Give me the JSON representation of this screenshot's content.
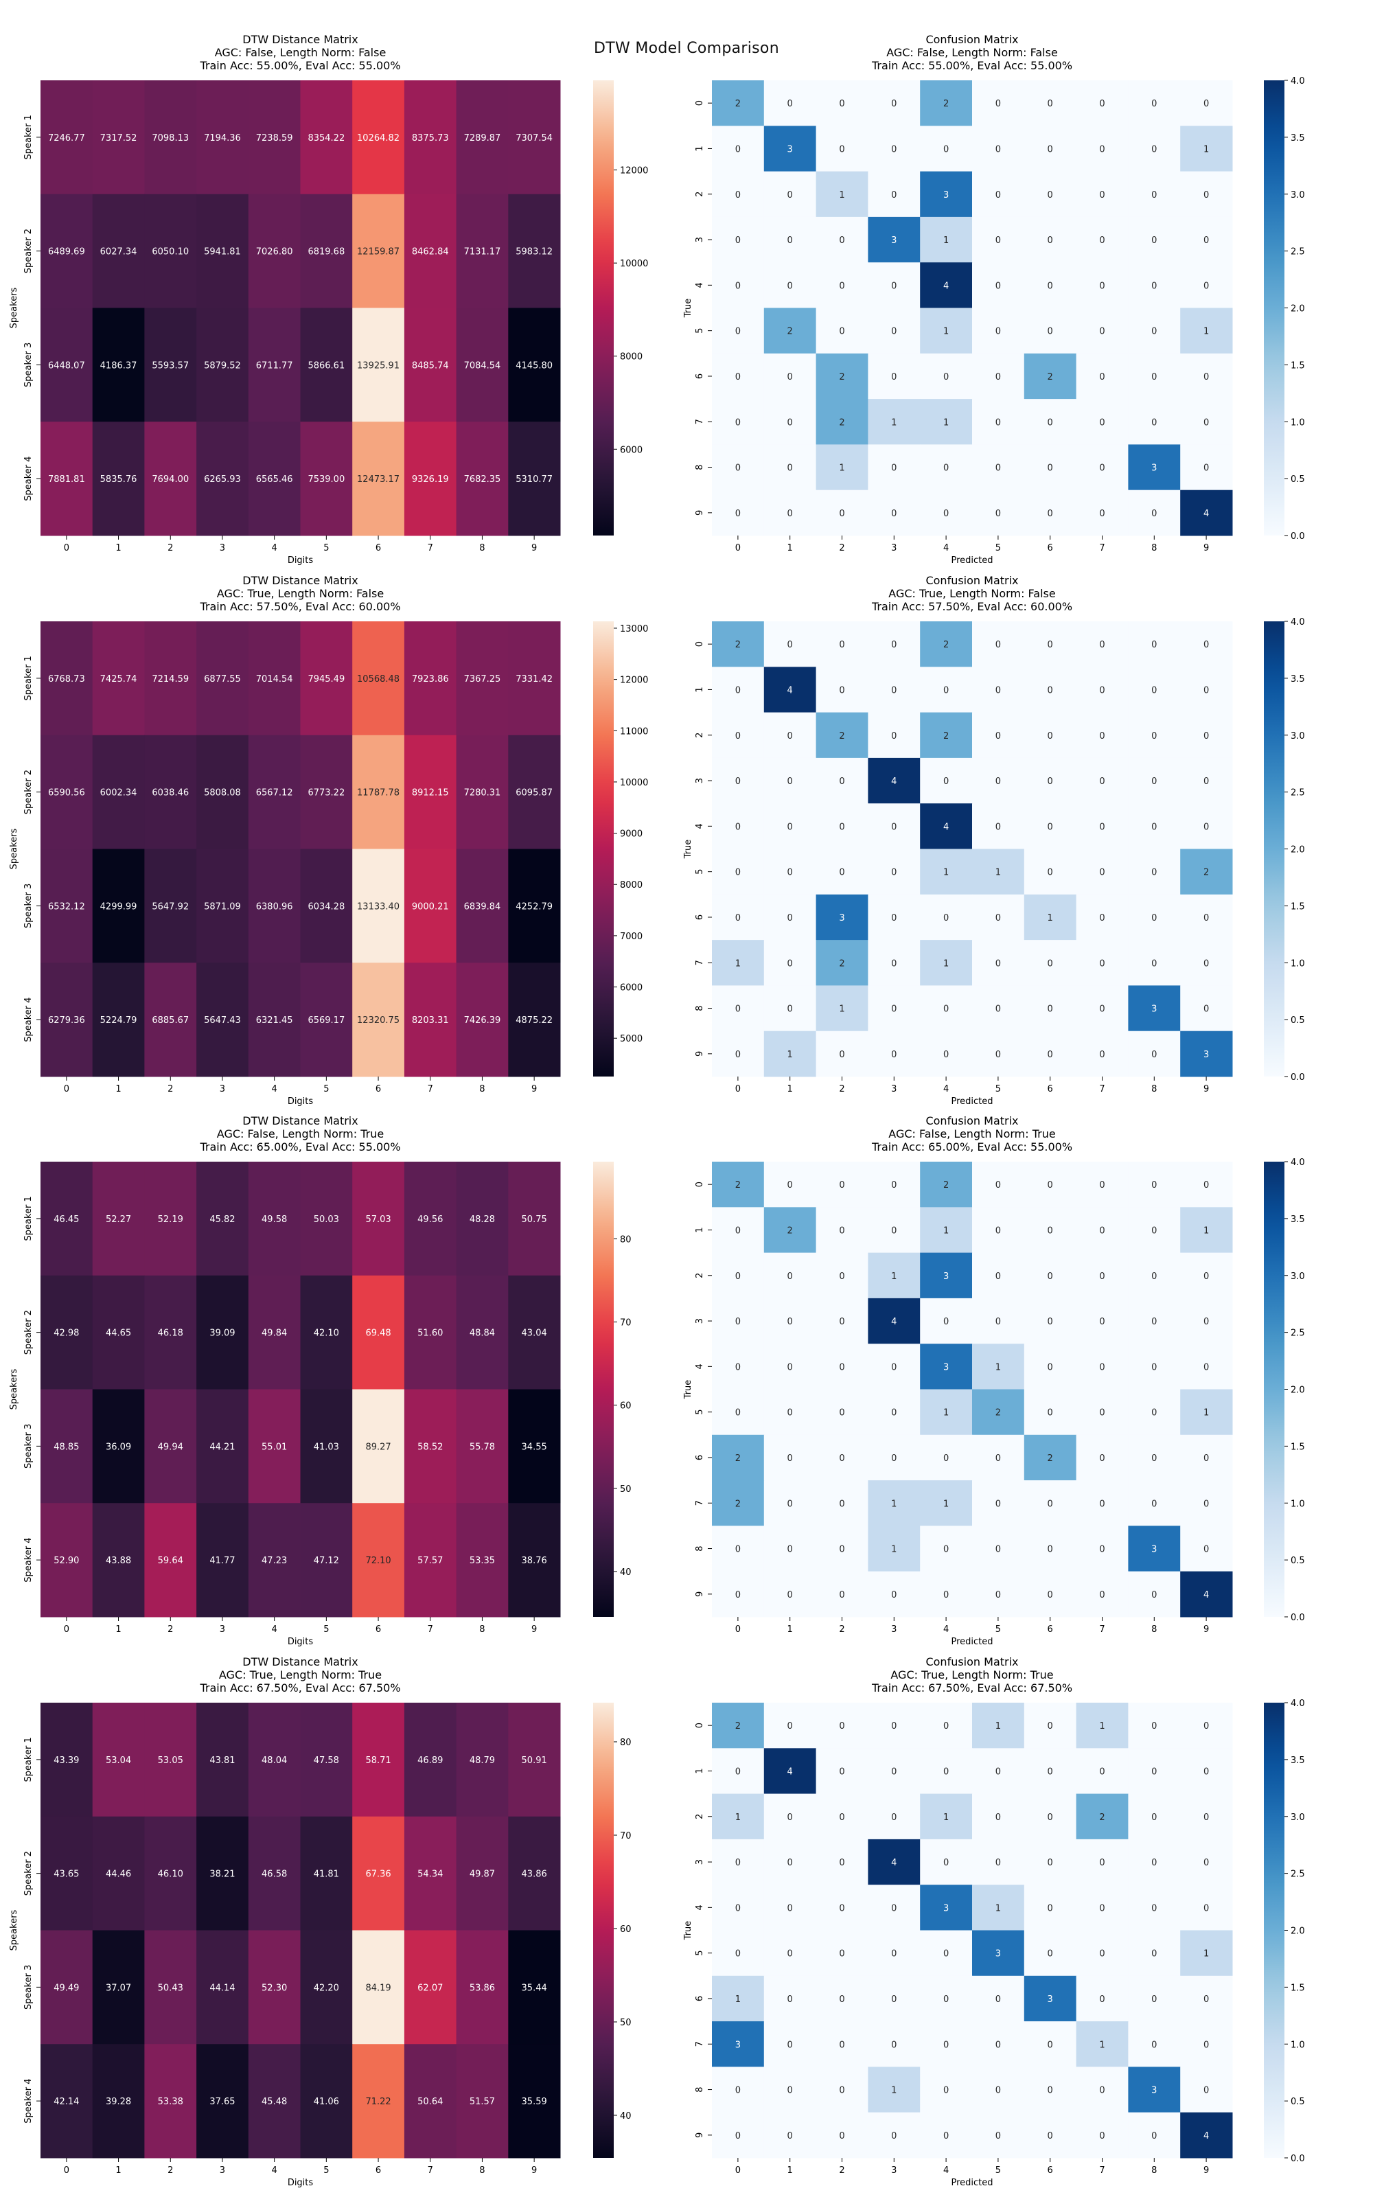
{
  "suptitle": "DTW Model Comparison",
  "chart_data": [
    {
      "type": "heatmap",
      "title": "DTW Distance Matrix\nAGC: False, Length Norm: False\nTrain Acc: 55.00%, Eval Acc: 55.00%",
      "xlabel": "Digits",
      "ylabel": "Speakers",
      "x": [
        "0",
        "1",
        "2",
        "3",
        "4",
        "5",
        "6",
        "7",
        "8",
        "9"
      ],
      "y": [
        "Speaker 1",
        "Speaker 2",
        "Speaker 3",
        "Speaker 4"
      ],
      "colormap": "rocket",
      "vmin": 4145.8,
      "vmax": 13925.91,
      "colorbar_ticks": [
        6000,
        8000,
        10000,
        12000
      ],
      "values": [
        [
          7246.77,
          7317.52,
          7098.13,
          7194.36,
          7238.59,
          8354.22,
          10264.82,
          8375.73,
          7289.87,
          7307.54
        ],
        [
          6489.69,
          6027.34,
          6050.1,
          5941.81,
          7026.8,
          6819.68,
          12159.87,
          8462.84,
          7131.17,
          5983.12
        ],
        [
          6448.07,
          4186.37,
          5593.57,
          5879.52,
          6711.77,
          5866.61,
          13925.91,
          8485.74,
          7084.54,
          4145.8
        ],
        [
          7881.81,
          5835.76,
          7694.0,
          6265.93,
          6565.46,
          7539.0,
          12473.17,
          9326.19,
          7682.35,
          5310.77
        ]
      ]
    },
    {
      "type": "heatmap",
      "title": "Confusion Matrix\nAGC: False, Length Norm: False\nTrain Acc: 55.00%, Eval Acc: 55.00%",
      "xlabel": "Predicted",
      "ylabel": "True",
      "x": [
        "0",
        "1",
        "2",
        "3",
        "4",
        "5",
        "6",
        "7",
        "8",
        "9"
      ],
      "y": [
        "0",
        "1",
        "2",
        "3",
        "4",
        "5",
        "6",
        "7",
        "8",
        "9"
      ],
      "colormap": "Blues",
      "vmin": 0,
      "vmax": 4,
      "colorbar_ticks": [
        0.0,
        0.5,
        1.0,
        1.5,
        2.0,
        2.5,
        3.0,
        3.5,
        4.0
      ],
      "values": [
        [
          2,
          0,
          0,
          0,
          2,
          0,
          0,
          0,
          0,
          0
        ],
        [
          0,
          3,
          0,
          0,
          0,
          0,
          0,
          0,
          0,
          1
        ],
        [
          0,
          0,
          1,
          0,
          3,
          0,
          0,
          0,
          0,
          0
        ],
        [
          0,
          0,
          0,
          3,
          1,
          0,
          0,
          0,
          0,
          0
        ],
        [
          0,
          0,
          0,
          0,
          4,
          0,
          0,
          0,
          0,
          0
        ],
        [
          0,
          2,
          0,
          0,
          1,
          0,
          0,
          0,
          0,
          1
        ],
        [
          0,
          0,
          2,
          0,
          0,
          0,
          2,
          0,
          0,
          0
        ],
        [
          0,
          0,
          2,
          1,
          1,
          0,
          0,
          0,
          0,
          0
        ],
        [
          0,
          0,
          1,
          0,
          0,
          0,
          0,
          0,
          3,
          0
        ],
        [
          0,
          0,
          0,
          0,
          0,
          0,
          0,
          0,
          0,
          4
        ]
      ]
    },
    {
      "type": "heatmap",
      "title": "DTW Distance Matrix\nAGC: True, Length Norm: False\nTrain Acc: 57.50%, Eval Acc: 60.00%",
      "xlabel": "Digits",
      "ylabel": "Speakers",
      "x": [
        "0",
        "1",
        "2",
        "3",
        "4",
        "5",
        "6",
        "7",
        "8",
        "9"
      ],
      "y": [
        "Speaker 1",
        "Speaker 2",
        "Speaker 3",
        "Speaker 4"
      ],
      "colormap": "rocket",
      "vmin": 4252.79,
      "vmax": 13133.4,
      "colorbar_ticks": [
        5000,
        6000,
        7000,
        8000,
        9000,
        10000,
        11000,
        12000,
        13000
      ],
      "values": [
        [
          6768.73,
          7425.74,
          7214.59,
          6877.55,
          7014.54,
          7945.49,
          10568.48,
          7923.86,
          7367.25,
          7331.42
        ],
        [
          6590.56,
          6002.34,
          6038.46,
          5808.08,
          6567.12,
          6773.22,
          11787.78,
          8912.15,
          7280.31,
          6095.87
        ],
        [
          6532.12,
          4299.99,
          5647.92,
          5871.09,
          6380.96,
          6034.28,
          13133.4,
          9000.21,
          6839.84,
          4252.79
        ],
        [
          6279.36,
          5224.79,
          6885.67,
          5647.43,
          6321.45,
          6569.17,
          12320.75,
          8203.31,
          7426.39,
          4875.22
        ]
      ]
    },
    {
      "type": "heatmap",
      "title": "Confusion Matrix\nAGC: True, Length Norm: False\nTrain Acc: 57.50%, Eval Acc: 60.00%",
      "xlabel": "Predicted",
      "ylabel": "True",
      "x": [
        "0",
        "1",
        "2",
        "3",
        "4",
        "5",
        "6",
        "7",
        "8",
        "9"
      ],
      "y": [
        "0",
        "1",
        "2",
        "3",
        "4",
        "5",
        "6",
        "7",
        "8",
        "9"
      ],
      "colormap": "Blues",
      "vmin": 0,
      "vmax": 4,
      "colorbar_ticks": [
        0.0,
        0.5,
        1.0,
        1.5,
        2.0,
        2.5,
        3.0,
        3.5,
        4.0
      ],
      "values": [
        [
          2,
          0,
          0,
          0,
          2,
          0,
          0,
          0,
          0,
          0
        ],
        [
          0,
          4,
          0,
          0,
          0,
          0,
          0,
          0,
          0,
          0
        ],
        [
          0,
          0,
          2,
          0,
          2,
          0,
          0,
          0,
          0,
          0
        ],
        [
          0,
          0,
          0,
          4,
          0,
          0,
          0,
          0,
          0,
          0
        ],
        [
          0,
          0,
          0,
          0,
          4,
          0,
          0,
          0,
          0,
          0
        ],
        [
          0,
          0,
          0,
          0,
          1,
          1,
          0,
          0,
          0,
          2
        ],
        [
          0,
          0,
          3,
          0,
          0,
          0,
          1,
          0,
          0,
          0
        ],
        [
          1,
          0,
          2,
          0,
          1,
          0,
          0,
          0,
          0,
          0
        ],
        [
          0,
          0,
          1,
          0,
          0,
          0,
          0,
          0,
          3,
          0
        ],
        [
          0,
          1,
          0,
          0,
          0,
          0,
          0,
          0,
          0,
          3
        ]
      ]
    },
    {
      "type": "heatmap",
      "title": "DTW Distance Matrix\nAGC: False, Length Norm: True\nTrain Acc: 65.00%, Eval Acc: 55.00%",
      "xlabel": "Digits",
      "ylabel": "Speakers",
      "x": [
        "0",
        "1",
        "2",
        "3",
        "4",
        "5",
        "6",
        "7",
        "8",
        "9"
      ],
      "y": [
        "Speaker 1",
        "Speaker 2",
        "Speaker 3",
        "Speaker 4"
      ],
      "colormap": "rocket",
      "vmin": 34.55,
      "vmax": 89.27,
      "colorbar_ticks": [
        40,
        50,
        60,
        70,
        80
      ],
      "values": [
        [
          46.45,
          52.27,
          52.19,
          45.82,
          49.58,
          50.03,
          57.03,
          49.56,
          48.28,
          50.75
        ],
        [
          42.98,
          44.65,
          46.18,
          39.09,
          49.84,
          42.1,
          69.48,
          51.6,
          48.84,
          43.04
        ],
        [
          48.85,
          36.09,
          49.94,
          44.21,
          55.01,
          41.03,
          89.27,
          58.52,
          55.78,
          34.55
        ],
        [
          52.9,
          43.88,
          59.64,
          41.77,
          47.23,
          47.12,
          72.1,
          57.57,
          53.35,
          38.76
        ]
      ]
    },
    {
      "type": "heatmap",
      "title": "Confusion Matrix\nAGC: False, Length Norm: True\nTrain Acc: 65.00%, Eval Acc: 55.00%",
      "xlabel": "Predicted",
      "ylabel": "True",
      "x": [
        "0",
        "1",
        "2",
        "3",
        "4",
        "5",
        "6",
        "7",
        "8",
        "9"
      ],
      "y": [
        "0",
        "1",
        "2",
        "3",
        "4",
        "5",
        "6",
        "7",
        "8",
        "9"
      ],
      "colormap": "Blues",
      "vmin": 0,
      "vmax": 4,
      "colorbar_ticks": [
        0.0,
        0.5,
        1.0,
        1.5,
        2.0,
        2.5,
        3.0,
        3.5,
        4.0
      ],
      "values": [
        [
          2,
          0,
          0,
          0,
          2,
          0,
          0,
          0,
          0,
          0
        ],
        [
          0,
          2,
          0,
          0,
          1,
          0,
          0,
          0,
          0,
          1
        ],
        [
          0,
          0,
          0,
          1,
          3,
          0,
          0,
          0,
          0,
          0
        ],
        [
          0,
          0,
          0,
          4,
          0,
          0,
          0,
          0,
          0,
          0
        ],
        [
          0,
          0,
          0,
          0,
          3,
          1,
          0,
          0,
          0,
          0
        ],
        [
          0,
          0,
          0,
          0,
          1,
          2,
          0,
          0,
          0,
          1
        ],
        [
          2,
          0,
          0,
          0,
          0,
          0,
          2,
          0,
          0,
          0
        ],
        [
          2,
          0,
          0,
          1,
          1,
          0,
          0,
          0,
          0,
          0
        ],
        [
          0,
          0,
          0,
          1,
          0,
          0,
          0,
          0,
          3,
          0
        ],
        [
          0,
          0,
          0,
          0,
          0,
          0,
          0,
          0,
          0,
          4
        ]
      ]
    },
    {
      "type": "heatmap",
      "title": "DTW Distance Matrix\nAGC: True, Length Norm: True\nTrain Acc: 67.50%, Eval Acc: 67.50%",
      "xlabel": "Digits",
      "ylabel": "Speakers",
      "x": [
        "0",
        "1",
        "2",
        "3",
        "4",
        "5",
        "6",
        "7",
        "8",
        "9"
      ],
      "y": [
        "Speaker 1",
        "Speaker 2",
        "Speaker 3",
        "Speaker 4"
      ],
      "colormap": "rocket",
      "vmin": 35.44,
      "vmax": 84.19,
      "colorbar_ticks": [
        40,
        50,
        60,
        70,
        80
      ],
      "values": [
        [
          43.39,
          53.04,
          53.05,
          43.81,
          48.04,
          47.58,
          58.71,
          46.89,
          48.79,
          50.91
        ],
        [
          43.65,
          44.46,
          46.1,
          38.21,
          46.58,
          41.81,
          67.36,
          54.34,
          49.87,
          43.86
        ],
        [
          49.49,
          37.07,
          50.43,
          44.14,
          52.3,
          42.2,
          84.19,
          62.07,
          53.86,
          35.44
        ],
        [
          42.14,
          39.28,
          53.38,
          37.65,
          45.48,
          41.06,
          71.22,
          50.64,
          51.57,
          35.59
        ]
      ]
    },
    {
      "type": "heatmap",
      "title": "Confusion Matrix\nAGC: True, Length Norm: True\nTrain Acc: 67.50%, Eval Acc: 67.50%",
      "xlabel": "Predicted",
      "ylabel": "True",
      "x": [
        "0",
        "1",
        "2",
        "3",
        "4",
        "5",
        "6",
        "7",
        "8",
        "9"
      ],
      "y": [
        "0",
        "1",
        "2",
        "3",
        "4",
        "5",
        "6",
        "7",
        "8",
        "9"
      ],
      "colormap": "Blues",
      "vmin": 0,
      "vmax": 4,
      "colorbar_ticks": [
        0.0,
        0.5,
        1.0,
        1.5,
        2.0,
        2.5,
        3.0,
        3.5,
        4.0
      ],
      "values": [
        [
          2,
          0,
          0,
          0,
          0,
          1,
          0,
          1,
          0,
          0
        ],
        [
          0,
          4,
          0,
          0,
          0,
          0,
          0,
          0,
          0,
          0
        ],
        [
          1,
          0,
          0,
          0,
          1,
          0,
          0,
          2,
          0,
          0
        ],
        [
          0,
          0,
          0,
          4,
          0,
          0,
          0,
          0,
          0,
          0
        ],
        [
          0,
          0,
          0,
          0,
          3,
          1,
          0,
          0,
          0,
          0
        ],
        [
          0,
          0,
          0,
          0,
          0,
          3,
          0,
          0,
          0,
          1
        ],
        [
          1,
          0,
          0,
          0,
          0,
          0,
          3,
          0,
          0,
          0
        ],
        [
          3,
          0,
          0,
          0,
          0,
          0,
          0,
          1,
          0,
          0
        ],
        [
          0,
          0,
          0,
          1,
          0,
          0,
          0,
          0,
          3,
          0
        ],
        [
          0,
          0,
          0,
          0,
          0,
          0,
          0,
          0,
          0,
          4
        ]
      ]
    }
  ]
}
